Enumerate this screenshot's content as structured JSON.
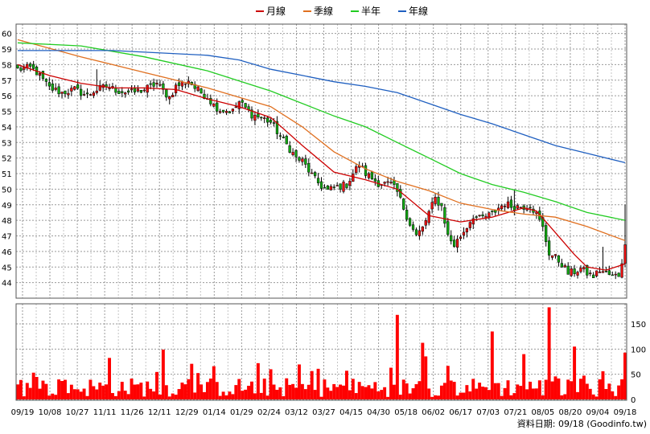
{
  "chart_data": {
    "type": "candlestick",
    "legend": [
      {
        "name": "月線",
        "color": "#cc0000"
      },
      {
        "name": "季線",
        "color": "#e07020"
      },
      {
        "name": "半年",
        "color": "#22cc22"
      },
      {
        "name": "年線",
        "color": "#1f5fc0"
      }
    ],
    "legend_position": "top",
    "grid": true,
    "price_axis": {
      "min": 43,
      "max": 60.6,
      "ticks": [
        44,
        45,
        46,
        47,
        48,
        49,
        50,
        51,
        52,
        53,
        54,
        55,
        56,
        57,
        58,
        59,
        60
      ]
    },
    "volume_axis": {
      "min": 0,
      "max": 190,
      "ticks": [
        0,
        50,
        100,
        150
      ]
    },
    "x_tick_labels": [
      "09/19",
      "10/08",
      "10/27",
      "11/11",
      "11/26",
      "12/11",
      "12/29",
      "01/14",
      "01/29",
      "02/24",
      "03/12",
      "03/27",
      "04/15",
      "04/30",
      "05/18",
      "06/02",
      "06/17",
      "07/03",
      "07/21",
      "08/05",
      "08/20",
      "09/04",
      "09/18"
    ],
    "close_path": [
      [
        0,
        57.7
      ],
      [
        4,
        57.8
      ],
      [
        6,
        57.5
      ],
      [
        10,
        56.5
      ],
      [
        14,
        56.2
      ],
      [
        18,
        56.4
      ],
      [
        22,
        56.0
      ],
      [
        24,
        56.3
      ],
      [
        28,
        56.6
      ],
      [
        32,
        56.3
      ],
      [
        36,
        56.2
      ],
      [
        40,
        56.4
      ],
      [
        44,
        56.8
      ],
      [
        46,
        56.3
      ],
      [
        48,
        55.9
      ],
      [
        50,
        56.6
      ],
      [
        54,
        57.0
      ],
      [
        56,
        56.5
      ],
      [
        60,
        55.9
      ],
      [
        62,
        55.4
      ],
      [
        64,
        55.1
      ],
      [
        68,
        55.0
      ],
      [
        70,
        55.6
      ],
      [
        72,
        55.2
      ],
      [
        74,
        54.8
      ],
      [
        78,
        54.5
      ],
      [
        80,
        54.3
      ],
      [
        82,
        53.7
      ],
      [
        84,
        53.1
      ],
      [
        86,
        52.6
      ],
      [
        88,
        52.0
      ],
      [
        90,
        51.8
      ],
      [
        92,
        51.2
      ],
      [
        94,
        50.6
      ],
      [
        96,
        50.2
      ],
      [
        98,
        49.9
      ],
      [
        100,
        50.1
      ],
      [
        104,
        50.3
      ],
      [
        106,
        51.0
      ],
      [
        108,
        51.6
      ],
      [
        110,
        51.0
      ],
      [
        112,
        50.7
      ],
      [
        114,
        50.4
      ],
      [
        118,
        50.3
      ],
      [
        120,
        49.8
      ],
      [
        122,
        48.8
      ],
      [
        124,
        47.8
      ],
      [
        126,
        47.0
      ],
      [
        128,
        47.5
      ],
      [
        130,
        48.5
      ],
      [
        132,
        49.4
      ],
      [
        134,
        48.9
      ],
      [
        136,
        47.0
      ],
      [
        138,
        46.4
      ],
      [
        140,
        47.0
      ],
      [
        142,
        47.6
      ],
      [
        144,
        48.3
      ],
      [
        146,
        48.1
      ],
      [
        150,
        48.4
      ],
      [
        152,
        48.8
      ],
      [
        154,
        49.1
      ],
      [
        156,
        48.9
      ],
      [
        160,
        48.9
      ],
      [
        162,
        49.0
      ],
      [
        164,
        48.4
      ],
      [
        166,
        47.5
      ],
      [
        168,
        45.9
      ],
      [
        170,
        45.6
      ],
      [
        172,
        45.2
      ],
      [
        174,
        44.6
      ],
      [
        176,
        44.7
      ],
      [
        178,
        44.9
      ],
      [
        180,
        44.6
      ],
      [
        182,
        44.4
      ],
      [
        184,
        44.8
      ],
      [
        186,
        44.6
      ],
      [
        188,
        44.4
      ],
      [
        190,
        44.5
      ],
      [
        192,
        46.3
      ]
    ],
    "spikes": [
      [
        25,
        57.7
      ],
      [
        102,
        49.5
      ],
      [
        117,
        48.6
      ],
      [
        134,
        48.8
      ],
      [
        157,
        50.0
      ],
      [
        185,
        46.3
      ],
      [
        192,
        49.0
      ]
    ],
    "ma20": [
      [
        0,
        58.0
      ],
      [
        10,
        57.3
      ],
      [
        20,
        56.8
      ],
      [
        30,
        56.5
      ],
      [
        40,
        56.5
      ],
      [
        50,
        56.4
      ],
      [
        60,
        55.8
      ],
      [
        70,
        55.3
      ],
      [
        80,
        54.6
      ],
      [
        90,
        52.8
      ],
      [
        100,
        51.1
      ],
      [
        110,
        50.6
      ],
      [
        120,
        50.0
      ],
      [
        130,
        48.3
      ],
      [
        140,
        47.9
      ],
      [
        150,
        48.2
      ],
      [
        160,
        48.8
      ],
      [
        164,
        48.6
      ],
      [
        170,
        47.2
      ],
      [
        176,
        45.8
      ],
      [
        180,
        45.0
      ],
      [
        186,
        44.8
      ],
      [
        192,
        45.2
      ]
    ],
    "ma60": [
      [
        0,
        59.6
      ],
      [
        20,
        58.5
      ],
      [
        40,
        57.5
      ],
      [
        60,
        56.5
      ],
      [
        80,
        55.3
      ],
      [
        90,
        54.0
      ],
      [
        100,
        52.4
      ],
      [
        110,
        51.3
      ],
      [
        120,
        50.5
      ],
      [
        130,
        49.9
      ],
      [
        140,
        49.1
      ],
      [
        150,
        48.7
      ],
      [
        160,
        48.4
      ],
      [
        170,
        48.2
      ],
      [
        180,
        47.6
      ],
      [
        192,
        46.7
      ]
    ],
    "ma120": [
      [
        0,
        59.4
      ],
      [
        20,
        59.2
      ],
      [
        40,
        58.5
      ],
      [
        60,
        57.6
      ],
      [
        80,
        56.3
      ],
      [
        100,
        54.7
      ],
      [
        110,
        54.0
      ],
      [
        120,
        53.0
      ],
      [
        130,
        52.0
      ],
      [
        140,
        51.0
      ],
      [
        150,
        50.3
      ],
      [
        160,
        49.8
      ],
      [
        170,
        49.2
      ],
      [
        180,
        48.5
      ],
      [
        192,
        48.0
      ]
    ],
    "ma240": [
      [
        0,
        58.9
      ],
      [
        30,
        58.9
      ],
      [
        60,
        58.6
      ],
      [
        70,
        58.3
      ],
      [
        80,
        57.7
      ],
      [
        90,
        57.3
      ],
      [
        100,
        56.9
      ],
      [
        110,
        56.6
      ],
      [
        120,
        56.2
      ],
      [
        130,
        55.5
      ],
      [
        140,
        54.8
      ],
      [
        150,
        54.2
      ],
      [
        160,
        53.5
      ],
      [
        170,
        52.8
      ],
      [
        180,
        52.3
      ],
      [
        192,
        51.7
      ]
    ]
  },
  "credit": "資料日期: 09/18 (Goodinfo.tw)"
}
